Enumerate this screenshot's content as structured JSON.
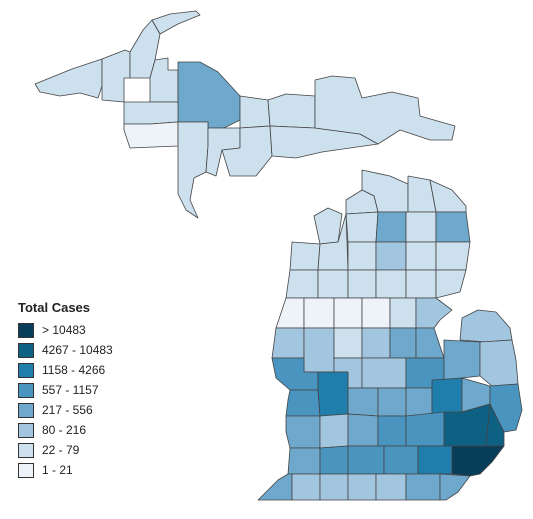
{
  "legend": {
    "title": "Total Cases",
    "items": [
      {
        "label": "> 10483",
        "color": "#083e5a"
      },
      {
        "label": "4267 - 10483",
        "color": "#0f6184"
      },
      {
        "label": "1158 - 4266",
        "color": "#1f7eab"
      },
      {
        "label": "557 - 1157",
        "color": "#4a95c0"
      },
      {
        "label": "217 - 556",
        "color": "#6ea9cd"
      },
      {
        "label": "80 - 216",
        "color": "#a3c6e0"
      },
      {
        "label": "22 - 79",
        "color": "#cde0ee"
      },
      {
        "label": "1 - 21",
        "color": "#eef3f9"
      }
    ]
  },
  "empty_color": "#ffffff"
}
